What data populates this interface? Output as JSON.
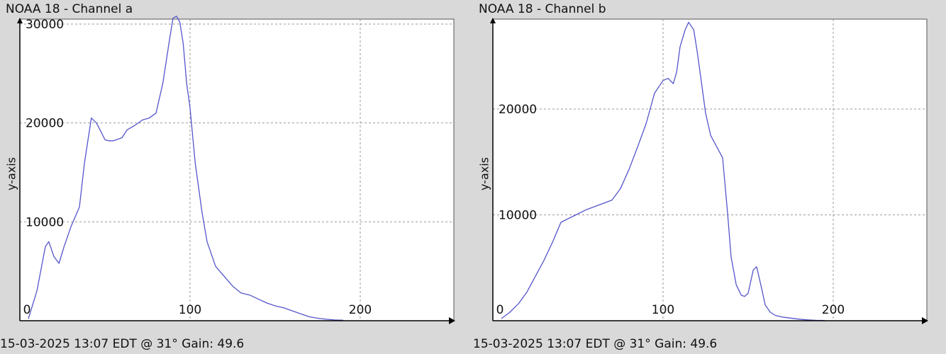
{
  "colors": {
    "background": "#d9d9d9",
    "plot_area": "#ffffff",
    "line": "#5555cc",
    "grid": "#999999",
    "axis": "#000000"
  },
  "chart_data": [
    {
      "type": "line",
      "title": "NOAA 18 - Channel a",
      "ylabel": "y-axis",
      "footer": "15-03-2025 13:07 EDT @ 31° Gain: 49.6",
      "xlim": [
        0,
        255
      ],
      "ylim": [
        0,
        30500
      ],
      "x_ticks": [
        0,
        100,
        200
      ],
      "y_ticks": [
        10000,
        20000,
        30000
      ],
      "x_tick_labels": [
        "0",
        "100",
        "200"
      ],
      "y_tick_labels": [
        "10000",
        "20000",
        "30000"
      ],
      "grid": true,
      "series": [
        {
          "x": [
            5,
            10,
            15,
            17,
            20,
            23,
            26,
            30,
            35,
            38,
            42,
            45,
            48,
            50,
            52,
            55,
            60,
            63,
            68,
            72,
            76,
            80,
            84,
            88,
            90,
            92,
            94,
            96,
            98,
            100,
            103,
            107,
            110,
            115,
            120,
            125,
            130,
            135,
            140,
            145,
            150,
            155,
            160,
            165,
            170,
            175,
            180,
            185,
            190
          ],
          "y": [
            200,
            3000,
            7500,
            8000,
            6500,
            5800,
            7500,
            9500,
            11500,
            16000,
            20500,
            20000,
            19000,
            18300,
            18200,
            18200,
            18500,
            19300,
            19800,
            20300,
            20500,
            21000,
            24000,
            28500,
            30600,
            30800,
            30200,
            28000,
            24000,
            21500,
            16000,
            11000,
            8000,
            5500,
            4500,
            3500,
            2800,
            2600,
            2200,
            1800,
            1500,
            1300,
            1000,
            700,
            400,
            250,
            150,
            80,
            50
          ]
        }
      ]
    },
    {
      "type": "line",
      "title": "NOAA 18 - Channel b",
      "ylabel": "y-axis",
      "footer": "15-03-2025 13:07 EDT @ 31° Gain: 49.6",
      "xlim": [
        0,
        255
      ],
      "ylim": [
        0,
        28500
      ],
      "x_ticks": [
        0,
        100,
        200
      ],
      "y_ticks": [
        10000,
        20000
      ],
      "x_tick_labels": [
        "0",
        "100",
        "200"
      ],
      "y_tick_labels": [
        "10000",
        "20000"
      ],
      "grid": true,
      "series": [
        {
          "x": [
            5,
            10,
            15,
            20,
            25,
            30,
            35,
            40,
            45,
            50,
            55,
            60,
            65,
            70,
            75,
            80,
            85,
            90,
            95,
            100,
            103,
            106,
            108,
            110,
            113,
            115,
            118,
            120,
            123,
            125,
            128,
            130,
            135,
            138,
            140,
            143,
            146,
            148,
            150,
            153,
            155,
            158,
            160,
            163,
            166,
            170,
            175,
            180,
            185,
            190,
            195
          ],
          "y": [
            200,
            800,
            1600,
            2700,
            4200,
            5700,
            7400,
            9300,
            9700,
            10100,
            10500,
            10800,
            11100,
            11400,
            12500,
            14300,
            16400,
            18600,
            21500,
            22700,
            22900,
            22400,
            23500,
            25900,
            27500,
            28200,
            27500,
            25500,
            22000,
            19600,
            17500,
            16900,
            15400,
            10000,
            6000,
            3400,
            2400,
            2300,
            2600,
            4800,
            5100,
            3000,
            1500,
            800,
            500,
            350,
            250,
            150,
            80,
            40,
            20
          ]
        }
      ]
    }
  ]
}
